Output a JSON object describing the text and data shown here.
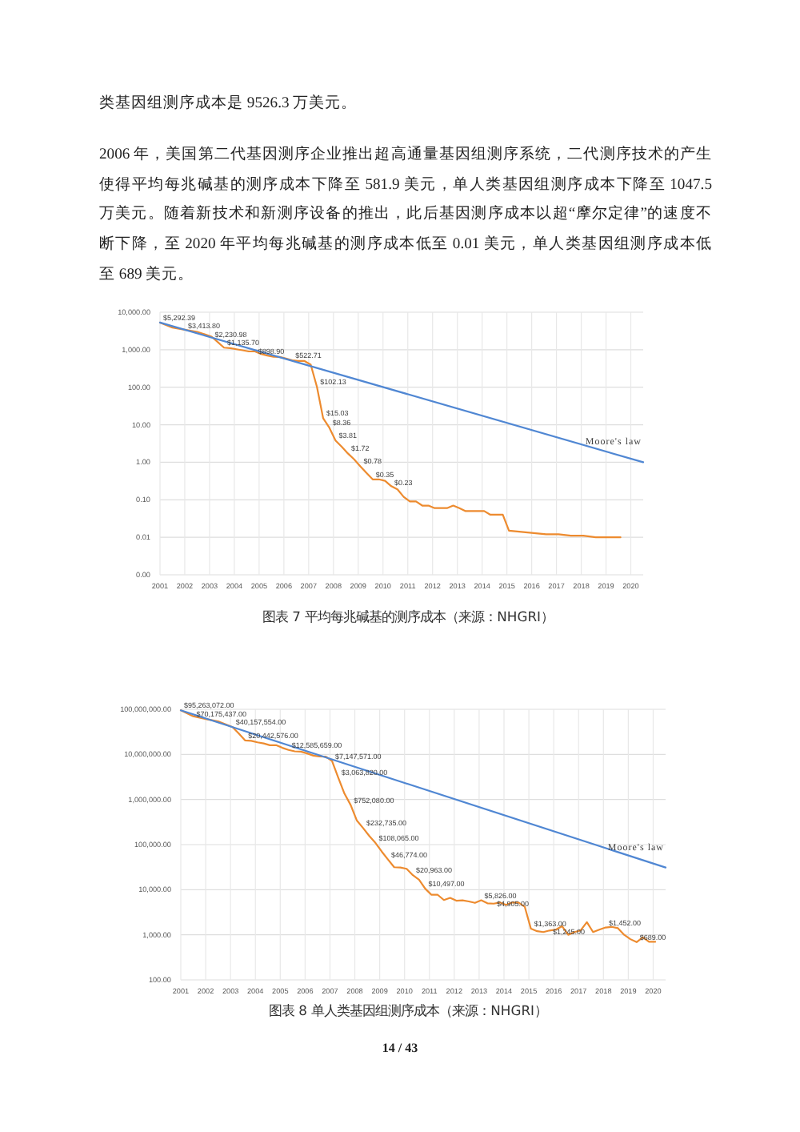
{
  "chart_data": [
    {
      "type": "line",
      "log": true,
      "grid": true,
      "annotations": [
        "类基因组测序成本是 9526.3 万美元。",
        "2006 年，美国第二代基因测序企业推出超高通量基因组测序系统，二代测序技术的产生使得平均每兆碱基的测序成本下降至 581.9 美元，单人类基因组测序成本下降至 1047.5 万美元。随着新技术和新测序设备的推出，此后基因测序成本以超“摩尔定律”的速度不断下降，至 2020 年平均每兆碱基的测序成本低至 0.01 美元，单人类基因组测序成本低至 689 美元。",
        "图表 7 平均每兆碱基的测序成本（来源：NHGRI）"
      ],
      "xlim": [
        "2001-09",
        "2021-03"
      ],
      "xticks": [
        {
          "value": "2001-09",
          "label": "2001"
        },
        {
          "value": "2002-09",
          "label": "2002"
        },
        {
          "value": "2003-09",
          "label": "2003"
        },
        {
          "value": "2004-09",
          "label": "2004"
        },
        {
          "value": "2005-09",
          "label": "2005"
        },
        {
          "value": "2006-09",
          "label": "2006"
        },
        {
          "value": "2007-09",
          "label": "2007"
        },
        {
          "value": "2008-09",
          "label": "2008"
        },
        {
          "value": "2009-09",
          "label": "2009"
        },
        {
          "value": "2010-09",
          "label": "2010"
        },
        {
          "value": "2011-09",
          "label": "2011"
        },
        {
          "value": "2012-09",
          "label": "2012"
        },
        {
          "value": "2013-09",
          "label": "2013"
        },
        {
          "value": "2014-09",
          "label": "2014"
        },
        {
          "value": "2015-09",
          "label": "2015"
        },
        {
          "value": "2016-09",
          "label": "2016"
        },
        {
          "value": "2017-09",
          "label": "2017"
        },
        {
          "value": "2018-09",
          "label": "2018"
        },
        {
          "value": "2019-09",
          "label": "2019"
        },
        {
          "value": "2020-09",
          "label": "2020"
        }
      ],
      "ylim": [
        0.001,
        10000
      ],
      "yticks": [
        {
          "value": 0.001,
          "label": "0.00"
        },
        {
          "value": 0.01,
          "label": "0.01"
        },
        {
          "value": 0.1,
          "label": "0.10"
        },
        {
          "value": 1,
          "label": "1.00"
        },
        {
          "value": 10,
          "label": "10.00"
        },
        {
          "value": 100,
          "label": "100.00"
        },
        {
          "value": 1000,
          "label": "1,000.00"
        },
        {
          "value": 10000,
          "label": "10,000.00"
        }
      ],
      "series": [
        {
          "color": "#ed8b2f",
          "x": [
            "2001-09",
            "2002-03",
            "2002-09",
            "2003-03",
            "2003-10",
            "2004-01",
            "2004-04",
            "2004-07",
            "2004-10",
            "2005-01",
            "2005-04",
            "2005-07",
            "2005-10",
            "2006-01",
            "2006-04",
            "2006-07",
            "2006-10",
            "2007-01",
            "2007-04",
            "2007-07",
            "2007-10",
            "2008-01",
            "2008-04",
            "2008-07",
            "2008-10",
            "2009-01",
            "2009-04",
            "2009-07",
            "2009-10",
            "2010-01",
            "2010-04",
            "2010-07",
            "2010-10",
            "2011-01",
            "2011-04",
            "2011-07",
            "2011-10",
            "2012-01",
            "2012-04",
            "2012-07",
            "2012-10",
            "2013-01",
            "2013-04",
            "2013-07",
            "2013-10",
            "2014-01",
            "2014-04",
            "2014-07",
            "2014-10",
            "2015-01",
            "2015-04",
            "2015-07",
            "2015-10",
            "2016-04",
            "2016-10",
            "2017-04",
            "2017-10",
            "2018-04",
            "2018-10",
            "2019-04",
            "2019-10",
            "2020-04"
          ],
          "values": [
            5292.39,
            3900,
            3413.8,
            3000,
            2230.98,
            1600,
            1135.7,
            1100,
            1030,
            970,
            900,
            898.9,
            770,
            700,
            650,
            640,
            580,
            522.71,
            500,
            500,
            400,
            102.13,
            15.03,
            8.36,
            3.81,
            2.6,
            1.72,
            1.2,
            0.78,
            0.52,
            0.35,
            0.35,
            0.32,
            0.23,
            0.19,
            0.12,
            0.09,
            0.09,
            0.07,
            0.07,
            0.06,
            0.06,
            0.06,
            0.07,
            0.06,
            0.05,
            0.05,
            0.05,
            0.05,
            0.04,
            0.04,
            0.04,
            0.015,
            0.014,
            0.013,
            0.012,
            0.012,
            0.011,
            0.011,
            0.01,
            0.01,
            0.01
          ],
          "value_labels": [
            "$5,292.39",
            null,
            "$3,413.80",
            null,
            "$2,230.98",
            null,
            "$1,135.70",
            null,
            null,
            null,
            null,
            "$898.90",
            null,
            null,
            null,
            null,
            null,
            "$522.71",
            null,
            null,
            null,
            "$102.13",
            "$15.03",
            "$8.36",
            "$3.81",
            null,
            "$1.72",
            null,
            "$0.78",
            null,
            "$0.35",
            null,
            null,
            "$0.23",
            null,
            null,
            null,
            null,
            null,
            null,
            null,
            null,
            null,
            null,
            null,
            null,
            null,
            null,
            null,
            null,
            null,
            null,
            null,
            null,
            null,
            null,
            null,
            null,
            null,
            null,
            null,
            null
          ]
        },
        {
          "name": "Moore's law",
          "color": "#5087d3",
          "x": [
            "2001-09",
            "2021-03"
          ],
          "values": [
            5300,
            1
          ]
        }
      ]
    },
    {
      "type": "line",
      "log": true,
      "grid": true,
      "annotations": [
        "图表 8 单人类基因组测序成本（来源：NHGRI）",
        "14 / 43"
      ],
      "xlim": [
        "2001-09",
        "2021-03"
      ],
      "xticks": [
        {
          "value": "2001-09",
          "label": "2001"
        },
        {
          "value": "2002-09",
          "label": "2002"
        },
        {
          "value": "2003-09",
          "label": "2003"
        },
        {
          "value": "2004-09",
          "label": "2004"
        },
        {
          "value": "2005-09",
          "label": "2005"
        },
        {
          "value": "2006-09",
          "label": "2006"
        },
        {
          "value": "2007-09",
          "label": "2007"
        },
        {
          "value": "2008-09",
          "label": "2008"
        },
        {
          "value": "2009-09",
          "label": "2009"
        },
        {
          "value": "2010-09",
          "label": "2010"
        },
        {
          "value": "2011-09",
          "label": "2011"
        },
        {
          "value": "2012-09",
          "label": "2012"
        },
        {
          "value": "2013-09",
          "label": "2013"
        },
        {
          "value": "2014-09",
          "label": "2014"
        },
        {
          "value": "2015-09",
          "label": "2015"
        },
        {
          "value": "2016-09",
          "label": "2016"
        },
        {
          "value": "2017-09",
          "label": "2017"
        },
        {
          "value": "2018-09",
          "label": "2018"
        },
        {
          "value": "2019-09",
          "label": "2019"
        },
        {
          "value": "2020-09",
          "label": "2020"
        }
      ],
      "ylim": [
        100,
        100000000
      ],
      "yticks": [
        {
          "value": 100,
          "label": "100.00"
        },
        {
          "value": 1000,
          "label": "1,000.00"
        },
        {
          "value": 10000,
          "label": "10,000.00"
        },
        {
          "value": 100000,
          "label": "100,000.00"
        },
        {
          "value": 1000000,
          "label": "1,000,000.00"
        },
        {
          "value": 10000000,
          "label": "10,000,000.00"
        },
        {
          "value": 100000000,
          "label": "100,000,000.00"
        }
      ],
      "series": [
        {
          "color": "#ed8b2f",
          "x": [
            "2001-09",
            "2002-03",
            "2002-09",
            "2003-03",
            "2003-10",
            "2004-01",
            "2004-04",
            "2004-07",
            "2004-10",
            "2005-01",
            "2005-04",
            "2005-07",
            "2005-10",
            "2006-01",
            "2006-04",
            "2006-07",
            "2006-10",
            "2007-01",
            "2007-04",
            "2007-07",
            "2007-10",
            "2008-01",
            "2008-04",
            "2008-07",
            "2008-10",
            "2009-01",
            "2009-04",
            "2009-07",
            "2009-10",
            "2010-01",
            "2010-04",
            "2010-07",
            "2010-10",
            "2011-01",
            "2011-04",
            "2011-07",
            "2011-10",
            "2012-01",
            "2012-04",
            "2012-07",
            "2012-10",
            "2013-01",
            "2013-04",
            "2013-07",
            "2013-10",
            "2014-01",
            "2014-04",
            "2014-07",
            "2014-10",
            "2015-01",
            "2015-04",
            "2015-07",
            "2015-10",
            "2016-01",
            "2016-04",
            "2016-07",
            "2016-10",
            "2017-01",
            "2017-04",
            "2017-07",
            "2017-10",
            "2018-01",
            "2018-04",
            "2018-07",
            "2018-10",
            "2019-01",
            "2019-04",
            "2019-07",
            "2019-10",
            "2020-01",
            "2020-04",
            "2020-07",
            "2020-10"
          ],
          "values": [
            95263072,
            70175437,
            61000000,
            54000000,
            40157554,
            29000000,
            20442576,
            20000000,
            18500000,
            17500000,
            16000000,
            16000000,
            14000000,
            12585659,
            11700000,
            11500000,
            10500000,
            9400000,
            9000000,
            8900000,
            7147571,
            3063820,
            1350000,
            752080,
            340000,
            232735,
            155000,
            108065,
            70000,
            46774,
            31500,
            31000,
            29000,
            20963,
            16700,
            10497,
            7700,
            7700,
            5900,
            6600,
            5700,
            5800,
            5500,
            5100,
            5826,
            5000,
            4905,
            5200,
            4600,
            5200,
            5200,
            4200,
            1363,
            1200,
            1150,
            1245,
            1300,
            1550,
            1000,
            1150,
            1250,
            1900,
            1150,
            1300,
            1452,
            1500,
            1400,
            1000,
            800,
            689,
            880,
            700,
            700
          ],
          "value_labels": [
            "$95,263,072.00",
            "$70,175,437.00",
            null,
            null,
            "$40,157,554.00",
            null,
            "$20,442,576.00",
            null,
            null,
            null,
            null,
            null,
            null,
            "$12,585,659.00",
            null,
            null,
            null,
            null,
            null,
            null,
            "$7,147,571.00",
            "$3,063,820.00",
            null,
            "$752,080.00",
            null,
            "$232,735.00",
            null,
            "$108,065.00",
            null,
            "$46,774.00",
            null,
            null,
            null,
            "$20,963.00",
            null,
            "$10,497.00",
            null,
            null,
            null,
            null,
            null,
            null,
            null,
            null,
            "$5,826.00",
            null,
            "$4,905.00",
            null,
            null,
            null,
            null,
            null,
            "$1,363.00",
            null,
            null,
            "$1,245.00",
            null,
            null,
            null,
            null,
            null,
            null,
            null,
            null,
            "$1,452.00",
            null,
            null,
            null,
            null,
            "$689.00",
            null,
            null,
            null
          ]
        },
        {
          "name": "Moore's law",
          "color": "#5087d3",
          "x": [
            "2001-09",
            "2021-03"
          ],
          "values": [
            95000000,
            31000
          ]
        }
      ]
    }
  ]
}
